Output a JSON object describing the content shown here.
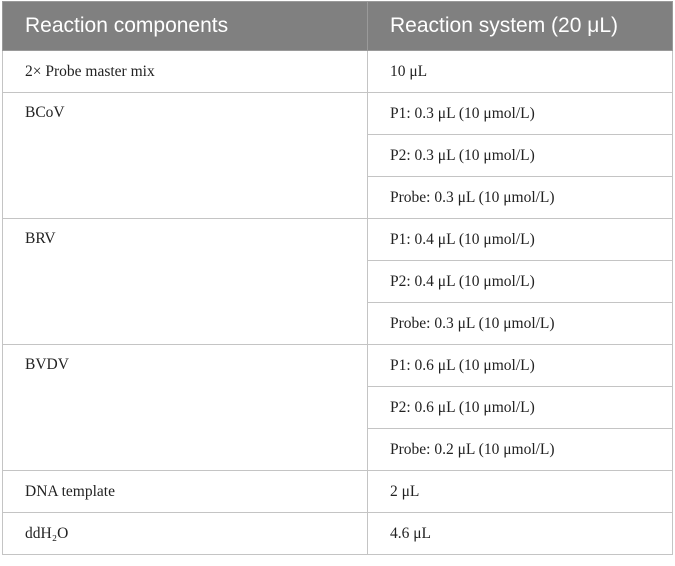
{
  "table": {
    "header": [
      "Reaction components",
      "Reaction system (20 μL)"
    ],
    "groups": [
      {
        "component": "2× Probe master mix",
        "values": [
          "10 μL"
        ]
      },
      {
        "component": "BCoV",
        "values": [
          "P1: 0.3 μL (10 μmol/L)",
          "P2: 0.3 μL (10 μmol/L)",
          "Probe: 0.3 μL (10 μmol/L)"
        ]
      },
      {
        "component": "BRV",
        "values": [
          "P1: 0.4 μL (10 μmol/L)",
          "P2: 0.4 μL (10 μmol/L)",
          "Probe: 0.3 μL (10 μmol/L)"
        ]
      },
      {
        "component": "BVDV",
        "values": [
          "P1: 0.6 μL (10 μmol/L)",
          "P2: 0.6 μL (10 μmol/L)",
          "Probe: 0.2 μL (10 μmol/L)"
        ]
      },
      {
        "component": "DNA template",
        "values": [
          "2 μL"
        ]
      },
      {
        "component": "ddH₂O",
        "values": [
          "4.6 μL"
        ]
      }
    ]
  }
}
